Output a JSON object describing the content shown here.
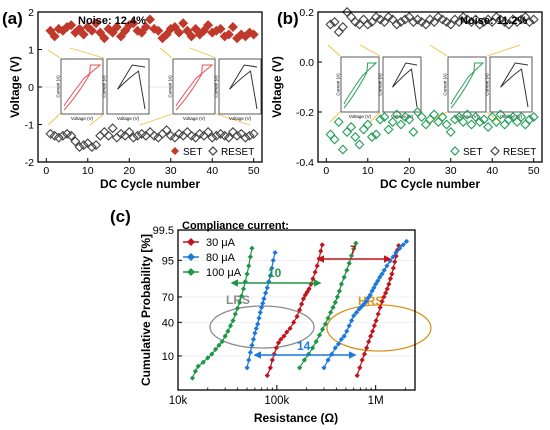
{
  "colors": {
    "set_a": "#c0392b",
    "reset": "#444444",
    "set_b": "#27a05a",
    "c30": "#c0141e",
    "c80": "#1e78dc",
    "c100": "#1e9646",
    "lrs": "#8c8c8c",
    "hrs": "#d7961e",
    "inset_red": "#e65050",
    "inset_green": "#28a05a"
  },
  "panel_labels": {
    "a": "(a)",
    "b": "(b)",
    "c": "(c)"
  },
  "chart_data": [
    {
      "type": "scatter",
      "panel": "(a)",
      "xlabel": "DC Cycle number",
      "ylabel": "Voltage (V)",
      "xlim": [
        -2,
        52
      ],
      "ylim": [
        -2,
        2
      ],
      "xticks": [
        0,
        10,
        20,
        30,
        40,
        50
      ],
      "yticks": [
        -2,
        -1,
        0,
        1,
        2
      ],
      "annotation": "Noise: 12.4%",
      "legend_position": "bottom-right",
      "inset_labels": {
        "xlabel": "Voltage (V)",
        "ylabel": "Current (A)"
      },
      "series": [
        {
          "name": "SET",
          "marker": "diamond-filled",
          "values": [
            1.5,
            1.35,
            1.55,
            1.5,
            1.6,
            1.65,
            1.45,
            1.55,
            1.4,
            1.6,
            1.5,
            1.7,
            1.45,
            1.3,
            1.55,
            1.45,
            1.6,
            1.35,
            1.5,
            1.65,
            1.7,
            1.5,
            1.45,
            1.6,
            1.8,
            1.55,
            1.5,
            1.3,
            1.4,
            1.55,
            1.6,
            1.45,
            1.7,
            1.5,
            1.35,
            1.55,
            1.4,
            1.5,
            1.65,
            1.45,
            1.5,
            1.55,
            1.35,
            1.4,
            1.6,
            1.3,
            1.4,
            1.35,
            1.45,
            1.4
          ]
        },
        {
          "name": "RESET",
          "marker": "diamond-open",
          "values": [
            -1.25,
            -1.3,
            -1.35,
            -1.3,
            -1.25,
            -1.3,
            -1.45,
            -1.6,
            -1.55,
            -1.5,
            -1.6,
            -1.55,
            -1.3,
            -1.2,
            -1.3,
            -1.1,
            -1.35,
            -1.25,
            -1.3,
            -1.2,
            -1.35,
            -1.3,
            -1.25,
            -1.3,
            -1.2,
            -1.3,
            -1.35,
            -1.25,
            -1.15,
            -1.3,
            -1.35,
            -1.25,
            -1.3,
            -1.2,
            -1.3,
            -1.35,
            -1.25,
            -1.3,
            -1.2,
            -1.35,
            -1.3,
            -1.25,
            -1.3,
            -1.35,
            -1.2,
            -1.3,
            -1.25,
            -1.35,
            -1.3,
            -1.25
          ]
        }
      ]
    },
    {
      "type": "scatter",
      "panel": "(b)",
      "xlabel": "DC Cycle number",
      "ylabel": "Voltage (V)",
      "xlim": [
        -2,
        52
      ],
      "ylim": [
        -0.4,
        0.2
      ],
      "xticks": [
        0,
        10,
        20,
        30,
        40,
        50
      ],
      "yticks": [
        -0.4,
        -0.2,
        0.0,
        0.2
      ],
      "annotation": "Noise: 11.2%",
      "legend_position": "bottom-right",
      "inset_labels": {
        "xlabel": "Voltage (V)",
        "ylabel": "Current (A)"
      },
      "series": [
        {
          "name": "SET",
          "marker": "diamond-open",
          "values": [
            -0.29,
            -0.31,
            -0.24,
            -0.35,
            -0.28,
            -0.26,
            -0.3,
            -0.33,
            -0.27,
            -0.25,
            -0.3,
            -0.29,
            -0.23,
            -0.22,
            -0.27,
            -0.24,
            -0.21,
            -0.25,
            -0.22,
            -0.23,
            -0.28,
            -0.2,
            -0.22,
            -0.25,
            -0.23,
            -0.21,
            -0.24,
            -0.22,
            -0.25,
            -0.28,
            -0.23,
            -0.22,
            -0.24,
            -0.21,
            -0.25,
            -0.22,
            -0.24,
            -0.23,
            -0.26,
            -0.22,
            -0.24,
            -0.21,
            -0.25,
            -0.23,
            -0.22,
            -0.24,
            -0.22,
            -0.25,
            -0.23,
            -0.22
          ]
        },
        {
          "name": "RESET",
          "marker": "diamond-open",
          "values": [
            0.15,
            0.16,
            0.12,
            0.14,
            0.2,
            0.18,
            0.16,
            0.15,
            0.17,
            0.15,
            0.16,
            0.18,
            0.17,
            0.16,
            0.18,
            0.17,
            0.15,
            0.16,
            0.17,
            0.18,
            0.16,
            0.17,
            0.16,
            0.15,
            0.17,
            0.16,
            0.18,
            0.17,
            0.16,
            0.15,
            0.17,
            0.16,
            0.18,
            0.17,
            0.16,
            0.17,
            0.15,
            0.16,
            0.17,
            0.16,
            0.18,
            0.17,
            0.16,
            0.15,
            0.17,
            0.16,
            0.17,
            0.18,
            0.16,
            0.17
          ]
        }
      ]
    },
    {
      "type": "line",
      "panel": "(c)",
      "xlabel": "Resistance (Ω)",
      "ylabel": "Cumulative Probability [%]",
      "x_scale": "log",
      "y_scale": "probability",
      "xlim": [
        10000,
        2500000
      ],
      "ylim": [
        1,
        99.5
      ],
      "xticks": [
        10000,
        100000,
        1000000
      ],
      "xtick_labels": [
        "10k",
        "100k",
        "1M"
      ],
      "yticks": [
        10,
        40,
        70,
        95,
        99.5
      ],
      "ytick_labels": [
        "10",
        "40",
        "70",
        "95",
        "99.5"
      ],
      "legend_title": "Compliance current:",
      "legend_position": "top-left",
      "series": [
        {
          "name": "30 μA",
          "state": "LRS",
          "resistance": [
            80000,
            86000,
            90000,
            94000,
            99000,
            104000,
            110000,
            118000,
            126000,
            136000,
            148000,
            160000,
            170000,
            178000,
            186000,
            194000,
            203000,
            212000,
            222000,
            232000,
            244000,
            256000,
            268000,
            278000,
            288000
          ],
          "probability": [
            3,
            5,
            8,
            11,
            15,
            19,
            22,
            25,
            29,
            33,
            40,
            47,
            55,
            62,
            68,
            72,
            75,
            78,
            82,
            86,
            90,
            93,
            95.5,
            97.3,
            98.3
          ]
        },
        {
          "name": "30 μA",
          "state": "HRS",
          "resistance": [
            650000,
            690000,
            730000,
            770000,
            810000,
            850000,
            890000,
            930000,
            970000,
            1010000,
            1060000,
            1110000,
            1160000,
            1210000,
            1260000,
            1310000,
            1360000,
            1410000,
            1460000,
            1510000,
            1560000,
            1610000,
            1660000,
            1710000
          ],
          "probability": [
            3,
            5,
            8,
            11,
            15,
            20,
            25,
            30,
            36,
            42,
            50,
            58,
            65,
            70,
            74,
            78,
            82,
            86,
            89,
            92,
            94.5,
            96.2,
            97.5,
            98.2
          ]
        },
        {
          "name": "80 μA",
          "state": "LRS",
          "resistance": [
            50000,
            52000,
            54000,
            56000,
            58000,
            60000,
            62000,
            64000,
            66000,
            68000,
            70000,
            72000,
            74000,
            77000,
            80000,
            83000,
            86000,
            89000,
            92000,
            96000
          ],
          "probability": [
            5,
            8,
            12,
            17,
            22,
            28,
            33,
            38,
            45,
            52,
            58,
            63,
            68,
            74,
            79,
            84,
            88,
            92,
            95,
            97
          ]
        },
        {
          "name": "80 μA",
          "state": "HRS",
          "resistance": [
            300000,
            330000,
            360000,
            390000,
            420000,
            450000,
            480000,
            510000,
            540000,
            570000,
            600000,
            640000,
            680000,
            720000,
            760000,
            800000,
            840000,
            880000,
            920000,
            960000,
            1000000,
            1050000,
            1100000,
            1160000,
            1220000,
            1300000,
            1400000,
            1500000,
            1600000,
            1750000,
            1900000,
            2050000
          ],
          "probability": [
            5,
            8,
            11,
            15,
            18,
            22,
            25,
            30,
            36,
            42,
            48,
            52,
            56,
            59,
            62,
            65,
            69,
            72,
            76,
            79,
            82,
            84.5,
            87,
            89,
            91,
            93,
            94.8,
            96,
            97,
            97.8,
            98.3,
            98.7
          ]
        },
        {
          "name": "100 μA",
          "state": "LRS",
          "resistance": [
            14000,
            15000,
            16000,
            18000,
            20000,
            22000,
            24000,
            26000,
            28000,
            30000,
            32000,
            34000,
            36000,
            38000,
            40000,
            42000,
            44000,
            46000,
            48000,
            50000,
            52000,
            54000,
            56000
          ],
          "probability": [
            2.5,
            4,
            5.5,
            7,
            9,
            11,
            14,
            17,
            20,
            25,
            30,
            36,
            42,
            50,
            57,
            64,
            71,
            78,
            84,
            89,
            93,
            96,
            97.8
          ]
        },
        {
          "name": "100 μA",
          "state": "HRS",
          "resistance": [
            170000,
            190000,
            210000,
            230000,
            250000,
            270000,
            290000,
            310000,
            330000,
            350000,
            370000,
            390000,
            410000,
            430000,
            450000,
            480000,
            510000,
            540000,
            570000,
            600000,
            630000
          ],
          "probability": [
            5,
            8,
            11,
            15,
            20,
            26,
            32,
            38,
            45,
            52,
            58,
            64,
            70,
            76,
            82,
            87,
            91,
            94,
            96.3,
            97.7,
            98.5
          ]
        }
      ],
      "annotations": {
        "lrs_label": "LRS",
        "hrs_label": "HRS",
        "ratio_30": "7",
        "ratio_100": "10",
        "ratio_80": "14"
      }
    }
  ]
}
